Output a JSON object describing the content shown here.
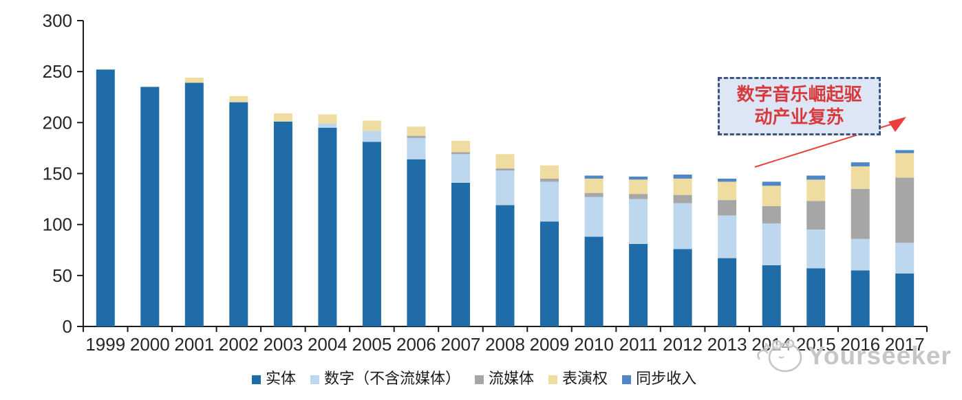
{
  "chart_data": {
    "type": "bar",
    "stacked": true,
    "title": "",
    "xlabel": "",
    "ylabel": "",
    "ylim": [
      0,
      300
    ],
    "yticks": [
      0,
      50,
      100,
      150,
      200,
      250,
      300
    ],
    "grid": false,
    "legend_position": "bottom",
    "categories": [
      "1999",
      "2000",
      "2001",
      "2002",
      "2003",
      "2004",
      "2005",
      "2006",
      "2007",
      "2008",
      "2009",
      "2010",
      "2011",
      "2012",
      "2013",
      "2014",
      "2015",
      "2016",
      "2017"
    ],
    "series": [
      {
        "name": "实体",
        "color": "#1F6CA8",
        "values": [
          252,
          235,
          239,
          220,
          201,
          195,
          181,
          164,
          141,
          119,
          103,
          88,
          81,
          76,
          67,
          60,
          57,
          55,
          52
        ]
      },
      {
        "name": "数字（不含流媒体）",
        "color": "#BDD7EE",
        "values": [
          0,
          0,
          0,
          0,
          0,
          4,
          11,
          21,
          28,
          34,
          39,
          39,
          44,
          45,
          42,
          41,
          38,
          31,
          30
        ]
      },
      {
        "name": "流媒体",
        "color": "#A6A6A6",
        "values": [
          0,
          0,
          0,
          0,
          0,
          0,
          0,
          2,
          2,
          2,
          3,
          4,
          5,
          8,
          15,
          17,
          28,
          49,
          64
        ]
      },
      {
        "name": "表演权",
        "color": "#EFDCA0",
        "values": [
          0,
          0,
          5,
          6,
          8,
          9,
          10,
          9,
          11,
          14,
          13,
          14,
          14,
          16,
          18,
          20,
          21,
          22,
          24
        ]
      },
      {
        "name": "同步收入",
        "color": "#4E86C6",
        "values": [
          0,
          0,
          0,
          0,
          0,
          0,
          0,
          0,
          0,
          0,
          0,
          3,
          3,
          4,
          3,
          4,
          4,
          4,
          3
        ]
      }
    ]
  },
  "annotation": {
    "line1": "数字音乐崛起驱",
    "line2": "动产业复苏",
    "arrow_color": "#e8413e"
  },
  "watermark": {
    "text": "Yourseeker"
  }
}
